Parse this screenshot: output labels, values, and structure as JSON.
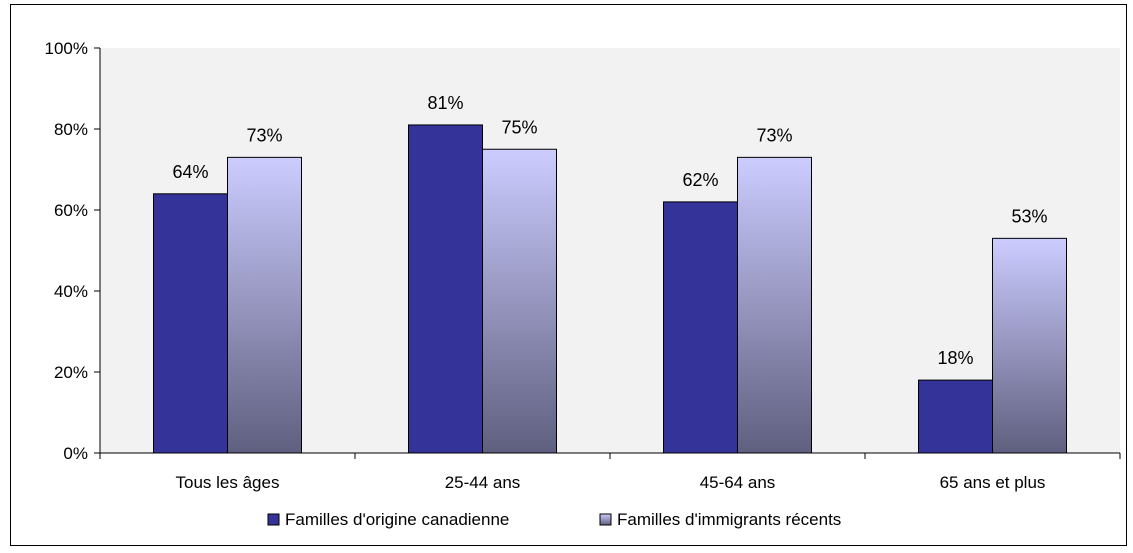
{
  "chart_data": {
    "type": "bar",
    "categories": [
      "Tous les âges",
      "25-44 ans",
      "45-64 ans",
      "65 ans et plus"
    ],
    "series": [
      {
        "name": "Familles d'origine canadienne",
        "values": [
          64,
          81,
          62,
          18
        ],
        "labels": [
          "64%",
          "81%",
          "62%",
          "18%"
        ],
        "color": "#333399"
      },
      {
        "name": "Familles d'immigrants récents",
        "values": [
          73,
          75,
          73,
          53
        ],
        "labels": [
          "73%",
          "75%",
          "73%",
          "53%"
        ],
        "color_top": "#ccccff",
        "color_bottom": "#5f5f7f"
      }
    ],
    "ylim": [
      0,
      100
    ],
    "yticks": [
      0,
      20,
      40,
      60,
      80,
      100
    ],
    "ytick_labels": [
      "0%",
      "20%",
      "40%",
      "60%",
      "80%",
      "100%"
    ],
    "title": "",
    "xlabel": "",
    "ylabel": "",
    "legend_position": "bottom",
    "grid": false,
    "plot_background": "#f2f2f2"
  }
}
